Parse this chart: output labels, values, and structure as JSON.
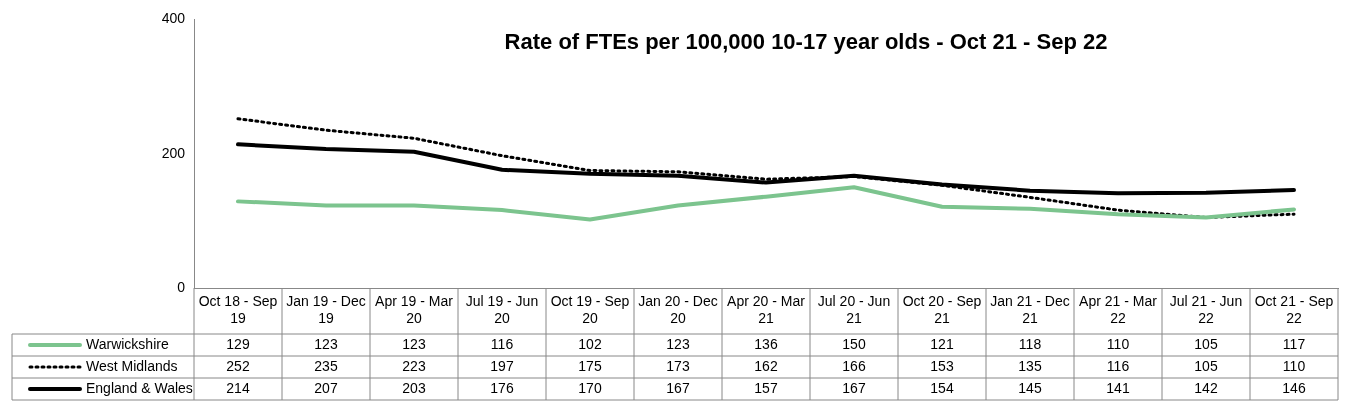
{
  "chart_data": {
    "type": "line",
    "title": "Rate of FTEs per 100,000 10-17 year olds - Oct 21 - Sep 22",
    "categories": [
      "Oct 18 - Sep 19",
      "Jan 19 - Dec 19",
      "Apr 19 - Mar 20",
      "Jul 19 - Jun 20",
      "Oct 19 - Sep 20",
      "Jan 20 - Dec 20",
      "Apr 20 - Mar 21",
      "Jul 20 - Jun 21",
      "Oct 20 - Sep 21",
      "Jan 21 - Dec 21",
      "Apr 21 - Mar 22",
      "Jul 21 - Jun 22",
      "Oct 21 - Sep 22"
    ],
    "series": [
      {
        "name": "Warwickshire",
        "color": "#7cc48e",
        "line_style": "solid",
        "values": [
          129,
          123,
          123,
          116,
          102,
          123,
          136,
          150,
          121,
          118,
          110,
          105,
          117
        ]
      },
      {
        "name": "West Midlands",
        "color": "#000000",
        "line_style": "dotted",
        "values": [
          252,
          235,
          223,
          197,
          175,
          173,
          162,
          166,
          153,
          135,
          116,
          105,
          110
        ]
      },
      {
        "name": "England & Wales",
        "color": "#000000",
        "line_style": "solid",
        "values": [
          214,
          207,
          203,
          176,
          170,
          167,
          157,
          167,
          154,
          145,
          141,
          142,
          146
        ]
      }
    ],
    "ylim": [
      0,
      400
    ],
    "yticks": [
      0,
      200,
      400
    ],
    "grid": false,
    "legend": "bottom",
    "data_labels": true,
    "marker": "none"
  }
}
